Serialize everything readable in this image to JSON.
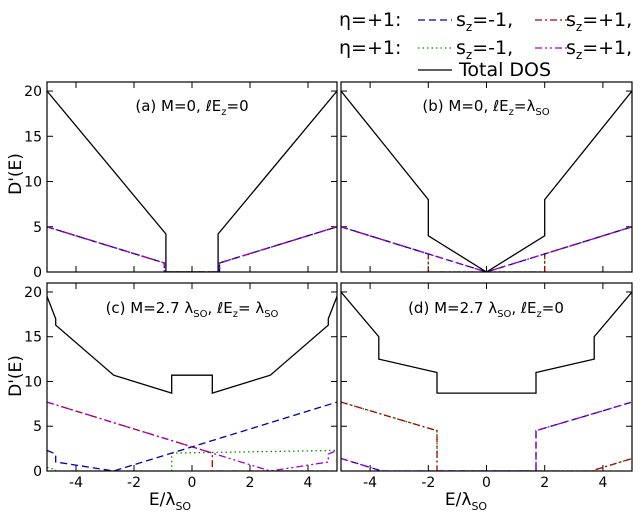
{
  "legend": {
    "rows": [
      {
        "eta": "η=+1:",
        "entries": [
          {
            "prefix": "s",
            "sub": "z",
            "value": "=-1,",
            "color": "#0000a8",
            "dash": "7,4"
          },
          {
            "prefix": "s",
            "sub": "z",
            "value": "=+1,",
            "color": "#b00000",
            "dash": "7,3,2,3"
          }
        ]
      },
      {
        "eta": "η=+1:",
        "entries": [
          {
            "prefix": "s",
            "sub": "z",
            "value": "=-1,",
            "color": "#009000",
            "dash": "1.5,3"
          },
          {
            "prefix": "s",
            "sub": "z",
            "value": "=+1,",
            "color": "#a000d0",
            "dash": "7,3,2,3,2,3"
          }
        ]
      }
    ],
    "total": {
      "label": "Total DOS",
      "color": "#000000"
    }
  },
  "axes": {
    "ylabel_top": "D'(E)",
    "ylabel_bottom": "D'(E)",
    "xlabel_main": "E/λ",
    "xlabel_sub": "SO",
    "xticks": [
      "-4",
      "-2",
      "0",
      "2",
      "4"
    ],
    "yticks": [
      "0",
      "5",
      "10",
      "15",
      "20"
    ]
  },
  "chart_data": [
    {
      "type": "line",
      "title_parts": [
        "(a) M=0, ℓE",
        "z",
        "=0"
      ],
      "xlim": [
        -5,
        5
      ],
      "ylim": [
        0,
        21
      ],
      "series": [
        {
          "role": "total",
          "x": [
            -5,
            -0.9,
            -0.9,
            0.9,
            0.9,
            5
          ],
          "y": [
            20,
            4.2,
            0,
            0,
            4.2,
            20
          ]
        },
        {
          "role": "eta+1 sz-1",
          "x": [
            -5,
            -0.95,
            -0.95,
            0.95,
            0.95,
            5
          ],
          "y": [
            5,
            1.0,
            0,
            0,
            1.0,
            5
          ]
        },
        {
          "role": "eta+1 sz+1",
          "x": [
            -5,
            -0.95,
            -0.95,
            0.95,
            0.95,
            5
          ],
          "y": [
            5,
            1.0,
            0,
            0,
            1.0,
            5
          ]
        },
        {
          "role": "eta-1 sz-1",
          "x": [
            -5,
            -0.95,
            -0.95,
            0.95,
            0.95,
            5
          ],
          "y": [
            5,
            1.0,
            0,
            0,
            1.0,
            5
          ]
        },
        {
          "role": "eta-1 sz+1",
          "x": [
            -5,
            -0.95,
            -0.95,
            0.95,
            0.95,
            5
          ],
          "y": [
            5,
            1.0,
            0,
            0,
            1.0,
            5
          ]
        }
      ]
    },
    {
      "type": "line",
      "title_parts": [
        "(b) M=0, ℓE",
        "z",
        "=λ",
        "SO"
      ],
      "xlim": [
        -5,
        5
      ],
      "ylim": [
        0,
        21
      ],
      "series": [
        {
          "role": "total",
          "x": [
            -5,
            -2,
            -2,
            0,
            2,
            2,
            5
          ],
          "y": [
            20,
            8,
            4,
            0,
            4,
            8,
            20
          ]
        },
        {
          "role": "eta+1 sz-1",
          "x": [
            -5,
            0,
            5
          ],
          "y": [
            5,
            0,
            5
          ]
        },
        {
          "role": "eta+1 sz+1",
          "x": [
            -5,
            -2,
            -2,
            2,
            2,
            5
          ],
          "y": [
            5,
            2,
            0,
            0,
            2,
            5
          ]
        },
        {
          "role": "eta-1 sz-1",
          "x": [
            -5,
            -2,
            -2,
            2,
            2,
            5
          ],
          "y": [
            5,
            2,
            0,
            0,
            2,
            5
          ]
        },
        {
          "role": "eta-1 sz+1",
          "x": [
            -5,
            0,
            5
          ],
          "y": [
            5,
            0,
            5
          ]
        }
      ]
    },
    {
      "type": "line",
      "title_parts": [
        "(c) M=2.7 λ",
        "SO",
        ", ℓE",
        "z",
        "= λ",
        "SO"
      ],
      "xlim": [
        -5,
        5
      ],
      "ylim": [
        0,
        21
      ],
      "series": [
        {
          "role": "total",
          "x": [
            -5,
            -4.7,
            -4.7,
            -2.7,
            -0.7,
            -0.7,
            0.7,
            0.7,
            2.7,
            4.7,
            4.7,
            5
          ],
          "y": [
            19.5,
            17,
            16.3,
            10.7,
            8.7,
            10.7,
            10.7,
            8.7,
            10.7,
            16.3,
            17,
            19.5
          ]
        },
        {
          "role": "eta+1 sz-1",
          "x": [
            -5,
            -4.7,
            -4.7,
            -2.7,
            5
          ],
          "y": [
            2.3,
            1.9,
            1.0,
            0,
            7.7
          ]
        },
        {
          "role": "eta+1 sz+1",
          "x": [
            -5,
            0.7,
            0.7,
            5
          ],
          "y": [
            7.7,
            2.0,
            0,
            0
          ]
        },
        {
          "role": "eta-1 sz-1",
          "x": [
            -5,
            -4.7,
            -4.7,
            -0.7,
            -0.7,
            5
          ],
          "y": [
            0.4,
            0.15,
            0,
            0,
            2.0,
            2.3
          ]
        },
        {
          "role": "eta-1 sz+1",
          "x": [
            -5,
            2.7,
            4.7,
            4.7,
            5
          ],
          "y": [
            7.7,
            0,
            1.0,
            1.9,
            2.3
          ]
        }
      ]
    },
    {
      "type": "line",
      "title_parts": [
        "(d) M=2.7 λ",
        "SO",
        ", ℓE",
        "z",
        "=0"
      ],
      "xlim": [
        -5,
        5
      ],
      "ylim": [
        0,
        21
      ],
      "series": [
        {
          "role": "total",
          "x": [
            -5,
            -3.7,
            -3.7,
            -1.7,
            -1.7,
            1.7,
            1.7,
            3.7,
            3.7,
            5
          ],
          "y": [
            20,
            15,
            12.5,
            11,
            8.7,
            8.7,
            11,
            12.5,
            15,
            20
          ]
        },
        {
          "role": "eta+1 sz-1",
          "x": [
            -5,
            -3.7,
            -3.7,
            1.7,
            1.7,
            5
          ],
          "y": [
            1.4,
            0.1,
            0,
            0,
            4.5,
            7.7
          ]
        },
        {
          "role": "eta+1 sz+1",
          "x": [
            -5,
            -1.7,
            -1.7,
            3.7,
            3.7,
            5
          ],
          "y": [
            7.7,
            4.5,
            0,
            0,
            0.1,
            1.4
          ]
        },
        {
          "role": "eta-1 sz-1",
          "x": [
            -5,
            -1.7,
            -1.7,
            3.7,
            3.7,
            5
          ],
          "y": [
            7.7,
            4.5,
            0,
            0,
            0.1,
            1.4
          ]
        },
        {
          "role": "eta-1 sz+1",
          "x": [
            -5,
            -3.7,
            -3.7,
            1.7,
            1.7,
            5
          ],
          "y": [
            1.4,
            0.1,
            0,
            0,
            4.5,
            7.7
          ]
        }
      ]
    }
  ]
}
